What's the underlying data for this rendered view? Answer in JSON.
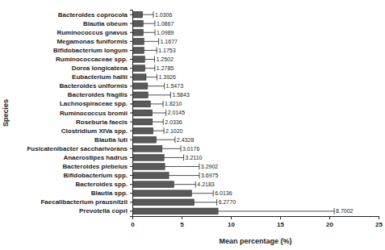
{
  "chart_data": {
    "type": "bar",
    "orientation": "horizontal",
    "x_label": "Mean percentage (%)",
    "y_label": "Species",
    "categories": [
      "Bacteroides coprocola",
      "Blautia obeum",
      "Ruminococcus gnavus",
      "Megamonas funiformis",
      "Bifidobacterium longum",
      "Ruminococcaceae spp.",
      "Dorea longicatena",
      "Eubacterium hallii",
      "Bacteroides uniformis",
      "Bacteroides fragilis",
      "Lachnospiraceae spp.",
      "Ruminococcus bromii",
      "Roseburia faecis",
      "Clostridium XIVa spp.",
      "Blautia luti",
      "Fusicatenibacter saccharivorans",
      "Anaerostipes hadrus",
      "Bacteroides plebeius",
      "Bifidobacterium spp.",
      "Bacteroides spp.",
      "Blautia spp.",
      "Faecalibacterium prausnitzii",
      "Prevotella copri"
    ],
    "values": [
      1.0306,
      1.0867,
      1.0989,
      1.1677,
      1.1753,
      1.2502,
      1.2785,
      1.3926,
      1.5473,
      1.5843,
      1.821,
      2.0145,
      2.0336,
      2.102,
      2.4328,
      3.0176,
      3.211,
      3.2902,
      3.6975,
      4.2183,
      6.0136,
      6.277,
      8.7002
    ],
    "value_labels": [
      "1.0306",
      "1.0867",
      "1.0989",
      "1.1677",
      "1.1753",
      "1.2502",
      "1.2785",
      "1.3926",
      "1.5473",
      "1.5843",
      "1.8210",
      "2.0145",
      "2.0336",
      "2.1020",
      "2.4328",
      "3.0176",
      "3.2110",
      "3.2902",
      "3.6975",
      "4.2183",
      "6.0136",
      "6.2770",
      "8.7002"
    ],
    "errors": [
      1.1,
      1.2,
      1.2,
      1.5,
      1.3,
      1.0,
      1.0,
      1.1,
      1.7,
      2.3,
      1.3,
      1.4,
      1.1,
      1.1,
      1.9,
      1.9,
      2.0,
      3.5,
      3.1,
      2.2,
      2.2,
      2.3,
      11.8
    ],
    "color": "#595959",
    "xlim": [
      0,
      25
    ],
    "xticks": [
      0,
      5,
      10,
      15,
      20,
      25
    ],
    "data_labels": true,
    "grid": false
  }
}
